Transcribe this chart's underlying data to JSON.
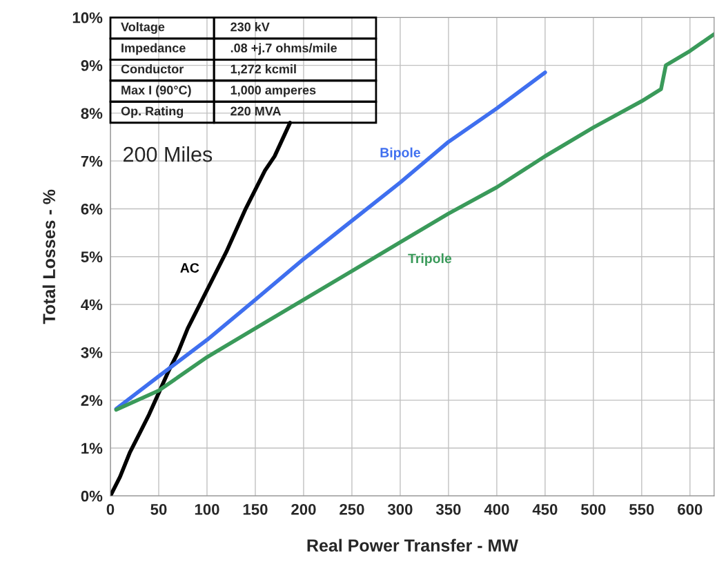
{
  "chart_data": {
    "type": "line",
    "xlabel": "Real Power Transfer - MW",
    "ylabel": "Total Losses - %",
    "xlim": [
      0,
      625
    ],
    "ylim": [
      0,
      10
    ],
    "xticks": [
      0,
      50,
      100,
      150,
      200,
      250,
      300,
      350,
      400,
      450,
      500,
      550,
      600
    ],
    "yticks": [
      {
        "value": 0,
        "label": "0%"
      },
      {
        "value": 1,
        "label": "1%"
      },
      {
        "value": 2,
        "label": "2%"
      },
      {
        "value": 3,
        "label": "3%"
      },
      {
        "value": 4,
        "label": "4%"
      },
      {
        "value": 5,
        "label": "5%"
      },
      {
        "value": 6,
        "label": "6%"
      },
      {
        "value": 7,
        "label": "7%"
      },
      {
        "value": 8,
        "label": "8%"
      },
      {
        "value": 9,
        "label": "9%"
      },
      {
        "value": 10,
        "label": "10%"
      }
    ],
    "grid": true,
    "marker": "none",
    "line_style": "solid",
    "series": [
      {
        "name": "AC",
        "color": "#000000",
        "x": [
          0,
          10,
          20,
          30,
          40,
          50,
          60,
          70,
          80,
          90,
          100,
          120,
          140,
          160,
          170,
          186
        ],
        "values": [
          0,
          0.4,
          0.9,
          1.3,
          1.7,
          2.15,
          2.6,
          3.0,
          3.5,
          3.9,
          4.3,
          5.1,
          6.0,
          6.8,
          7.1,
          7.8
        ]
      },
      {
        "name": "Bipole",
        "color": "#3f6fef",
        "x": [
          6,
          50,
          100,
          150,
          200,
          250,
          300,
          350,
          400,
          450
        ],
        "values": [
          1.82,
          2.5,
          3.26,
          4.1,
          4.95,
          5.75,
          6.55,
          7.4,
          8.1,
          8.85
        ]
      },
      {
        "name": "Tripole",
        "color": "#3a9a5a",
        "x": [
          6,
          50,
          100,
          150,
          200,
          250,
          300,
          350,
          400,
          450,
          500,
          550,
          570,
          575,
          600,
          625
        ],
        "values": [
          1.8,
          2.2,
          2.9,
          3.5,
          4.1,
          4.7,
          5.3,
          5.9,
          6.45,
          7.1,
          7.7,
          8.25,
          8.5,
          9.0,
          9.3,
          9.65
        ]
      }
    ],
    "annotations": [
      "200 Miles",
      "Voltage",
      "230 kV",
      "Impedance",
      ".08 +j.7 ohms/mile",
      "Conductor",
      "1,272 kcmil",
      "Max I (90°C)",
      "1,000 amperes",
      "Op. Rating",
      "220 MVA"
    ]
  }
}
